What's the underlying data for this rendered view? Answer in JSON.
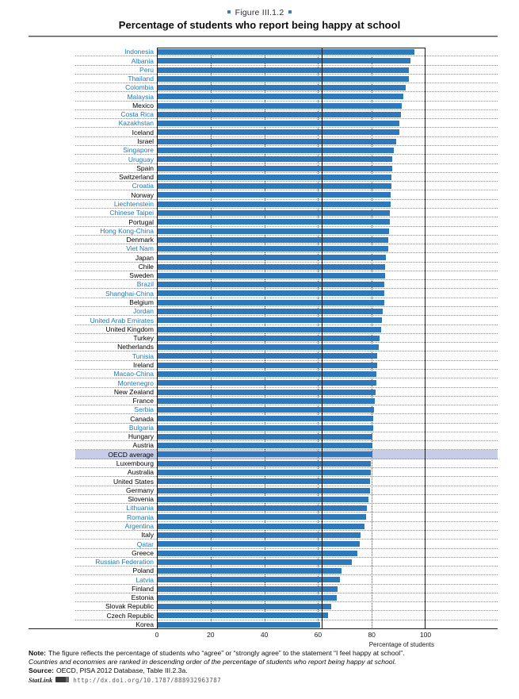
{
  "header": {
    "figure_label": "Figure III.1.2",
    "title": "Percentage of students who report being happy at school"
  },
  "chart_data": {
    "type": "bar",
    "orientation": "horizontal",
    "title": "Percentage of students who report being happy at school",
    "xlabel": "Percentage of students",
    "xlim": [
      0,
      100
    ],
    "x_ticks": [
      0,
      20,
      40,
      60,
      80,
      100
    ],
    "gridline_values": [
      20,
      40,
      60,
      80
    ],
    "grid": true,
    "reference_line_value": 61.5,
    "highlight_category": "OECD average",
    "legend_position": "none",
    "colors": {
      "bar": "#2d79bc",
      "partner_label": "#1e78bc",
      "oecd_label": "#000000",
      "highlight_band": "#c6cde6",
      "frame": "#1c1c1c",
      "accent_square": "#3a7dbf"
    },
    "rows": [
      {
        "label": "Indonesia",
        "value": 95.7,
        "partner": true
      },
      {
        "label": "Albania",
        "value": 94.0,
        "partner": true
      },
      {
        "label": "Peru",
        "value": 93.5,
        "partner": true
      },
      {
        "label": "Thailand",
        "value": 93.4,
        "partner": true
      },
      {
        "label": "Colombia",
        "value": 92.2,
        "partner": true
      },
      {
        "label": "Malaysia",
        "value": 91.3,
        "partner": true
      },
      {
        "label": "Mexico",
        "value": 90.8,
        "partner": false
      },
      {
        "label": "Costa Rica",
        "value": 90.5,
        "partner": true
      },
      {
        "label": "Kazakhstan",
        "value": 90.1,
        "partner": true
      },
      {
        "label": "Iceland",
        "value": 89.9,
        "partner": false
      },
      {
        "label": "Israel",
        "value": 88.9,
        "partner": false
      },
      {
        "label": "Singapore",
        "value": 87.9,
        "partner": true
      },
      {
        "label": "Uruguay",
        "value": 87.4,
        "partner": true
      },
      {
        "label": "Spain",
        "value": 87.3,
        "partner": false
      },
      {
        "label": "Switzerland",
        "value": 87.0,
        "partner": false
      },
      {
        "label": "Croatia",
        "value": 86.9,
        "partner": true
      },
      {
        "label": "Norway",
        "value": 86.7,
        "partner": false
      },
      {
        "label": "Liechtenstein",
        "value": 86.7,
        "partner": true
      },
      {
        "label": "Chinese Taipei",
        "value": 86.5,
        "partner": true
      },
      {
        "label": "Portugal",
        "value": 86.4,
        "partner": false
      },
      {
        "label": "Hong Kong-China",
        "value": 86.0,
        "partner": true
      },
      {
        "label": "Denmark",
        "value": 85.9,
        "partner": false
      },
      {
        "label": "Viet Nam",
        "value": 85.7,
        "partner": true
      },
      {
        "label": "Japan",
        "value": 85.1,
        "partner": false
      },
      {
        "label": "Chile",
        "value": 84.8,
        "partner": false
      },
      {
        "label": "Sweden",
        "value": 84.7,
        "partner": false
      },
      {
        "label": "Brazil",
        "value": 84.5,
        "partner": true
      },
      {
        "label": "Shanghai-China",
        "value": 84.4,
        "partner": true
      },
      {
        "label": "Belgium",
        "value": 84.3,
        "partner": false
      },
      {
        "label": "Jordan",
        "value": 83.7,
        "partner": true
      },
      {
        "label": "United Arab Emirates",
        "value": 83.6,
        "partner": true
      },
      {
        "label": "United Kingdom",
        "value": 83.2,
        "partner": false
      },
      {
        "label": "Turkey",
        "value": 82.7,
        "partner": false
      },
      {
        "label": "Netherlands",
        "value": 82.3,
        "partner": false
      },
      {
        "label": "Tunisia",
        "value": 81.7,
        "partner": true
      },
      {
        "label": "Ireland",
        "value": 81.6,
        "partner": false
      },
      {
        "label": "Macao-China",
        "value": 81.4,
        "partner": true
      },
      {
        "label": "Montenegro",
        "value": 81.3,
        "partner": true
      },
      {
        "label": "New Zealand",
        "value": 81.1,
        "partner": false
      },
      {
        "label": "France",
        "value": 80.7,
        "partner": false
      },
      {
        "label": "Serbia",
        "value": 80.5,
        "partner": true
      },
      {
        "label": "Canada",
        "value": 80.3,
        "partner": false
      },
      {
        "label": "Bulgaria",
        "value": 80.1,
        "partner": true
      },
      {
        "label": "Hungary",
        "value": 79.9,
        "partner": false
      },
      {
        "label": "Austria",
        "value": 79.9,
        "partner": false
      },
      {
        "label": "OECD average",
        "value": 79.8,
        "partner": false
      },
      {
        "label": "Luxembourg",
        "value": 79.4,
        "partner": false
      },
      {
        "label": "Australia",
        "value": 79.3,
        "partner": false
      },
      {
        "label": "United States",
        "value": 79.2,
        "partner": false
      },
      {
        "label": "Germany",
        "value": 79.0,
        "partner": false
      },
      {
        "label": "Slovenia",
        "value": 78.4,
        "partner": false
      },
      {
        "label": "Lithuania",
        "value": 77.8,
        "partner": true
      },
      {
        "label": "Romania",
        "value": 77.6,
        "partner": true
      },
      {
        "label": "Argentina",
        "value": 76.9,
        "partner": true
      },
      {
        "label": "Italy",
        "value": 75.4,
        "partner": false
      },
      {
        "label": "Qatar",
        "value": 75.1,
        "partner": true
      },
      {
        "label": "Greece",
        "value": 74.4,
        "partner": false
      },
      {
        "label": "Russian Federation",
        "value": 72.4,
        "partner": true
      },
      {
        "label": "Poland",
        "value": 68.5,
        "partner": false
      },
      {
        "label": "Latvia",
        "value": 67.8,
        "partner": true
      },
      {
        "label": "Finland",
        "value": 67.0,
        "partner": false
      },
      {
        "label": "Estonia",
        "value": 66.6,
        "partner": false
      },
      {
        "label": "Slovak Republic",
        "value": 64.5,
        "partner": false
      },
      {
        "label": "Czech Republic",
        "value": 63.5,
        "partner": false
      },
      {
        "label": "Korea",
        "value": 60.4,
        "partner": false
      }
    ]
  },
  "footer": {
    "note_label": "Note:",
    "note_text": "The figure reflects the percentage of students who “agree” or “strongly agree” to the statement “I feel happy at school”.",
    "ranking_note": "Countries and economies are ranked in descending order of the percentage of students who report being happy at school.",
    "source_label": "Source:",
    "source_text": "OECD, PISA 2012 Database, Table III.2.3a.",
    "statlink_label": "StatLink",
    "statlink_url": "http://dx.doi.org/10.1787/888932963787"
  }
}
